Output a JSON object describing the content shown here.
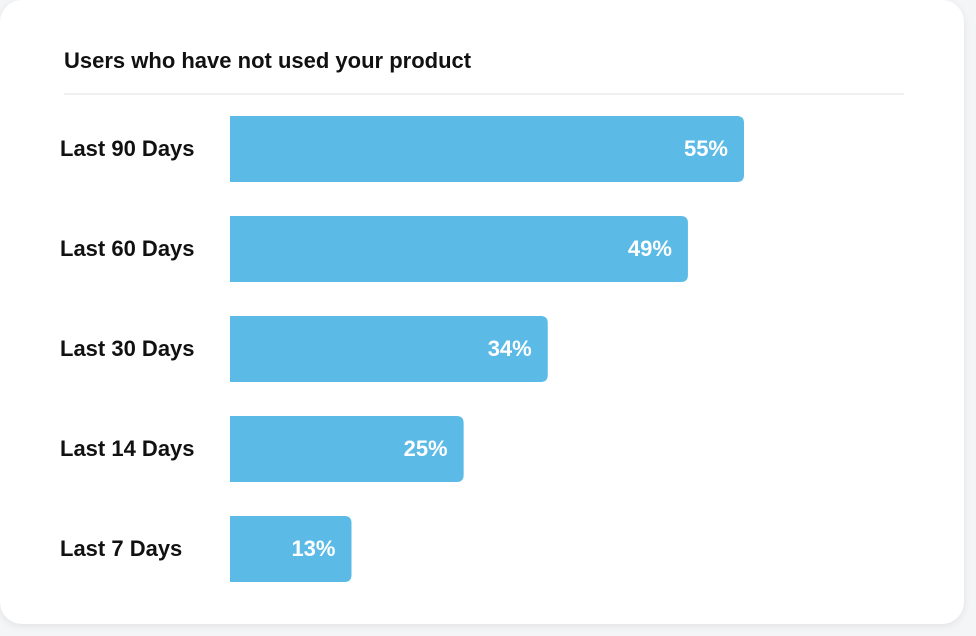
{
  "chart_data": {
    "type": "bar",
    "orientation": "horizontal",
    "title": "Users who have not used your product",
    "categories": [
      "Last 90 Days",
      "Last 60 Days",
      "Last 30 Days",
      "Last 14 Days",
      "Last 7 Days"
    ],
    "values": [
      55,
      49,
      34,
      25,
      13
    ],
    "value_labels": [
      "55%",
      "49%",
      "34%",
      "25%",
      "13%"
    ],
    "color": "#5bbae6"
  }
}
